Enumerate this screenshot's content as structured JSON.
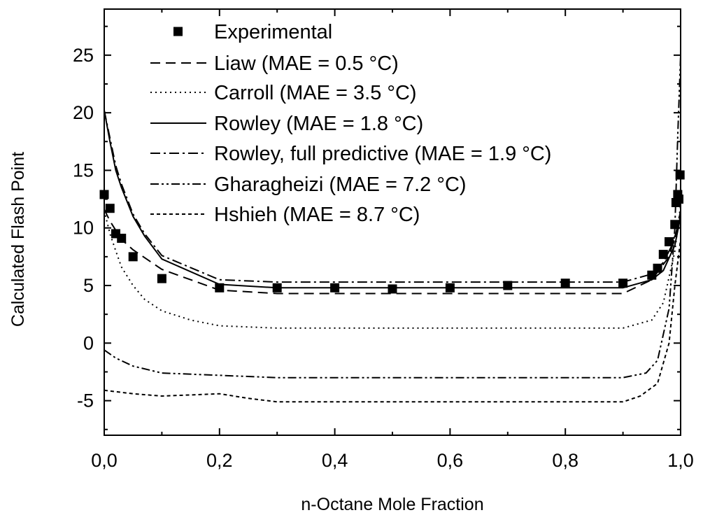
{
  "chart_data": {
    "type": "line",
    "xlabel": "n-Octane Mole Fraction",
    "ylabel": "Calculated Flash Point",
    "xlim": [
      0,
      1
    ],
    "ylim": [
      -8,
      29
    ],
    "x_ticks": [
      0,
      0.2,
      0.4,
      0.6,
      0.8,
      1.0
    ],
    "x_tick_labels": [
      "0,0",
      "0,2",
      "0,4",
      "0,6",
      "0,8",
      "1,0"
    ],
    "y_ticks": [
      -5,
      0,
      5,
      10,
      15,
      20,
      25
    ],
    "y_tick_labels": [
      "-5",
      "0",
      "5",
      "10",
      "15",
      "20",
      "25"
    ],
    "grid": false,
    "legend_position": "top-left",
    "series": [
      {
        "name": "Experimental",
        "style": "markers",
        "marker": "square",
        "x": [
          0.0,
          0.01,
          0.02,
          0.03,
          0.05,
          0.1,
          0.2,
          0.3,
          0.4,
          0.5,
          0.6,
          0.7,
          0.8,
          0.9,
          0.95,
          0.96,
          0.97,
          0.98,
          0.99,
          0.992,
          0.995,
          0.997,
          0.999
        ],
        "y": [
          12.9,
          11.7,
          9.5,
          9.1,
          7.5,
          5.6,
          4.8,
          4.8,
          4.8,
          4.7,
          4.8,
          5.0,
          5.2,
          5.2,
          5.9,
          6.5,
          7.7,
          8.8,
          10.3,
          12.2,
          12.9,
          12.5,
          14.6
        ]
      },
      {
        "name": "Liaw (MAE = 0.5 °C)",
        "style": "dashed",
        "x": [
          0.0,
          0.01,
          0.03,
          0.05,
          0.1,
          0.2,
          0.3,
          0.4,
          0.5,
          0.6,
          0.7,
          0.8,
          0.9,
          0.95,
          0.98,
          1.0
        ],
        "y": [
          11.6,
          10.6,
          9.0,
          8.1,
          6.4,
          4.6,
          4.3,
          4.3,
          4.3,
          4.3,
          4.3,
          4.3,
          4.3,
          5.5,
          7.5,
          11.0
        ]
      },
      {
        "name": "Carroll (MAE = 3.5 °C)",
        "style": "dotted",
        "x": [
          0.0,
          0.01,
          0.02,
          0.03,
          0.05,
          0.07,
          0.1,
          0.15,
          0.2,
          0.3,
          0.5,
          0.7,
          0.9,
          0.95,
          0.97,
          0.99,
          1.0
        ],
        "y": [
          11.5,
          9.5,
          8.0,
          6.6,
          5.0,
          3.8,
          2.8,
          2.0,
          1.5,
          1.3,
          1.3,
          1.3,
          1.3,
          2.0,
          3.5,
          8.0,
          12.0
        ]
      },
      {
        "name": "Rowley (MAE = 1.8 °C)",
        "style": "solid",
        "x": [
          0.0,
          0.01,
          0.02,
          0.03,
          0.05,
          0.07,
          0.1,
          0.2,
          0.3,
          0.4,
          0.5,
          0.6,
          0.7,
          0.8,
          0.9,
          0.95,
          0.97,
          0.99,
          1.0
        ],
        "y": [
          20.2,
          17.5,
          15.0,
          13.5,
          11.0,
          9.3,
          7.3,
          5.1,
          4.8,
          4.8,
          4.8,
          4.8,
          4.8,
          4.8,
          4.8,
          5.5,
          6.3,
          8.5,
          11.0
        ]
      },
      {
        "name": "Rowley, full predictive (MAE = 1.9 °C)",
        "style": "dash-dot",
        "x": [
          0.0,
          0.01,
          0.02,
          0.03,
          0.05,
          0.07,
          0.1,
          0.2,
          0.3,
          0.4,
          0.5,
          0.6,
          0.7,
          0.8,
          0.9,
          0.95,
          0.97,
          0.99,
          1.0
        ],
        "y": [
          20.2,
          17.8,
          15.4,
          13.8,
          11.2,
          9.5,
          7.6,
          5.5,
          5.3,
          5.3,
          5.3,
          5.3,
          5.3,
          5.3,
          5.3,
          6.0,
          7.0,
          9.0,
          11.5
        ]
      },
      {
        "name": "Gharagheizi (MAE = 7.2 °C)",
        "style": "dash-dot-dot",
        "x": [
          0.0,
          0.02,
          0.05,
          0.1,
          0.2,
          0.3,
          0.5,
          0.7,
          0.9,
          0.94,
          0.96,
          0.98,
          0.99,
          0.995,
          1.0
        ],
        "y": [
          -0.6,
          -1.3,
          -2.0,
          -2.6,
          -2.8,
          -3.0,
          -3.0,
          -3.0,
          -3.0,
          -2.6,
          -1.5,
          3.0,
          10.0,
          18.0,
          25.0
        ]
      },
      {
        "name": "Hshieh (MAE = 8.7 °C)",
        "style": "short-dash",
        "x": [
          0.0,
          0.05,
          0.1,
          0.15,
          0.2,
          0.25,
          0.3,
          0.5,
          0.7,
          0.9,
          0.93,
          0.96,
          0.98,
          0.99,
          1.0
        ],
        "y": [
          -4.1,
          -4.4,
          -4.6,
          -4.5,
          -4.4,
          -4.8,
          -5.1,
          -5.1,
          -5.1,
          -5.1,
          -4.6,
          -3.5,
          0.0,
          5.0,
          9.0
        ]
      }
    ]
  }
}
